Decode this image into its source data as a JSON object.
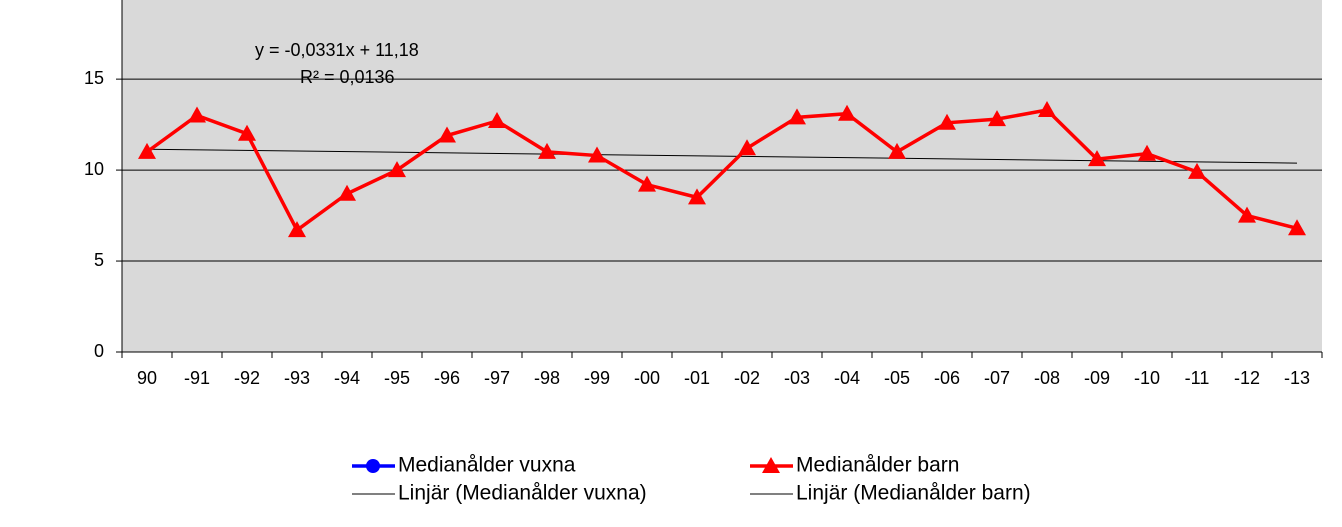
{
  "chart_data": {
    "type": "line",
    "categories": [
      "90",
      "-91",
      "-92",
      "-93",
      "-94",
      "-95",
      "-96",
      "-97",
      "-98",
      "-99",
      "-00",
      "-01",
      "-02",
      "-03",
      "-04",
      "-05",
      "-06",
      "-07",
      "-08",
      "-09",
      "-10",
      "-11",
      "-12",
      "-13"
    ],
    "series": [
      {
        "name": "Medianålder vuxna",
        "color": "#0000ff",
        "marker": "circle",
        "values": [
          null,
          null,
          null,
          null,
          null,
          null,
          null,
          null,
          null,
          null,
          null,
          null,
          null,
          null,
          null,
          null,
          null,
          null,
          null,
          null,
          null,
          null,
          null,
          null
        ]
      },
      {
        "name": "Medianålder barn",
        "color": "#ff0000",
        "marker": "triangle",
        "values": [
          11.0,
          13.0,
          12.0,
          6.7,
          8.7,
          10.0,
          11.9,
          12.7,
          11.0,
          10.8,
          9.2,
          8.5,
          11.2,
          12.9,
          13.1,
          11.0,
          12.6,
          12.8,
          13.3,
          10.6,
          10.9,
          9.9,
          7.5,
          6.8
        ]
      }
    ],
    "trendlines": [
      {
        "name": "Linjär (Medianålder vuxna)",
        "color": "#000000"
      },
      {
        "name": "Linjär (Medianålder barn)",
        "color": "#000000",
        "slope": -0.0331,
        "intercept": 11.18
      }
    ],
    "annotations": [
      "y = -0,0331x  + 11,18",
      "R² = 0,0136"
    ],
    "ylim": [
      0,
      19.35
    ],
    "yticks": [
      0,
      5,
      10,
      15
    ],
    "grid": true
  }
}
